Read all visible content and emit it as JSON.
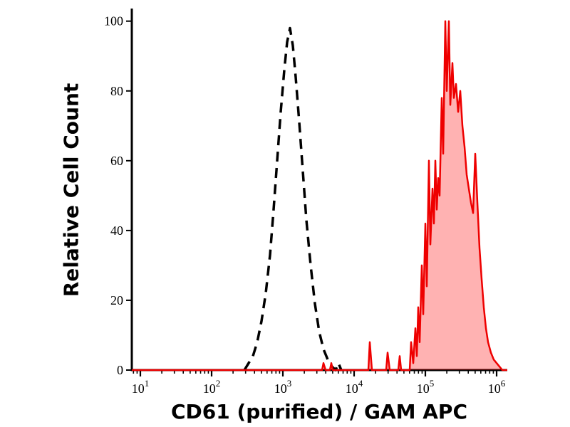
{
  "figure": {
    "background": "#ffffff",
    "axis_color": "#000000"
  },
  "chart_data": {
    "type": "area",
    "subtype": "flow-cytometry-histogram-overlay",
    "title": "",
    "xlabel": "CD61 (purified) / GAM APC",
    "ylabel": "Relative Cell Count",
    "x_scale": "log10",
    "x_range_log10": [
      0.88,
      6.15
    ],
    "ylim": [
      0,
      103
    ],
    "x_tick_base": "10",
    "x_tick_exponents": [
      1,
      2,
      3,
      4,
      5,
      6
    ],
    "y_ticks": [
      0,
      20,
      40,
      60,
      80,
      100
    ],
    "grid": false,
    "legend": "none",
    "series": [
      {
        "name": "negative control (dashed outline)",
        "line_style": "dashed",
        "color": "#000000",
        "fill": "none",
        "stroke_width": 3.5,
        "dash": "14 9",
        "points_log10x_y": [
          [
            2.46,
            0
          ],
          [
            2.52,
            2
          ],
          [
            2.58,
            4
          ],
          [
            2.64,
            8
          ],
          [
            2.7,
            14
          ],
          [
            2.76,
            22
          ],
          [
            2.82,
            33
          ],
          [
            2.87,
            46
          ],
          [
            2.92,
            60
          ],
          [
            2.97,
            74
          ],
          [
            3.02,
            86
          ],
          [
            3.06,
            94
          ],
          [
            3.1,
            98
          ],
          [
            3.14,
            93
          ],
          [
            3.18,
            84
          ],
          [
            3.23,
            71
          ],
          [
            3.28,
            57
          ],
          [
            3.33,
            43
          ],
          [
            3.39,
            30
          ],
          [
            3.45,
            19
          ],
          [
            3.51,
            11
          ],
          [
            3.57,
            6
          ],
          [
            3.63,
            3
          ],
          [
            3.69,
            1
          ],
          [
            3.74,
            0
          ],
          [
            3.78,
            2
          ],
          [
            3.82,
            0
          ]
        ]
      },
      {
        "name": "CD61 stained (red filled)",
        "line_style": "solid",
        "color": "#ee0000",
        "fill": "rgba(255,0,0,0.30)",
        "stroke_width": 2.5,
        "dash": "",
        "points_log10x_y": [
          [
            0.88,
            0
          ],
          [
            3.55,
            0
          ],
          [
            3.57,
            2
          ],
          [
            3.6,
            0
          ],
          [
            3.66,
            0
          ],
          [
            3.68,
            2
          ],
          [
            3.7,
            0
          ],
          [
            4.2,
            0
          ],
          [
            4.22,
            8
          ],
          [
            4.25,
            0
          ],
          [
            4.45,
            0
          ],
          [
            4.47,
            5
          ],
          [
            4.5,
            0
          ],
          [
            4.62,
            0
          ],
          [
            4.64,
            4
          ],
          [
            4.66,
            0
          ],
          [
            4.78,
            0
          ],
          [
            4.8,
            8
          ],
          [
            4.83,
            2
          ],
          [
            4.86,
            12
          ],
          [
            4.88,
            4
          ],
          [
            4.9,
            18
          ],
          [
            4.92,
            8
          ],
          [
            4.95,
            30
          ],
          [
            4.97,
            16
          ],
          [
            5.0,
            42
          ],
          [
            5.02,
            24
          ],
          [
            5.05,
            60
          ],
          [
            5.07,
            36
          ],
          [
            5.1,
            52
          ],
          [
            5.12,
            42
          ],
          [
            5.14,
            60
          ],
          [
            5.16,
            46
          ],
          [
            5.18,
            55
          ],
          [
            5.2,
            50
          ],
          [
            5.23,
            78
          ],
          [
            5.25,
            62
          ],
          [
            5.28,
            100
          ],
          [
            5.3,
            80
          ],
          [
            5.33,
            100
          ],
          [
            5.35,
            76
          ],
          [
            5.38,
            88
          ],
          [
            5.4,
            78
          ],
          [
            5.43,
            82
          ],
          [
            5.46,
            74
          ],
          [
            5.49,
            80
          ],
          [
            5.52,
            70
          ],
          [
            5.55,
            64
          ],
          [
            5.58,
            56
          ],
          [
            5.61,
            52
          ],
          [
            5.64,
            48
          ],
          [
            5.67,
            45
          ],
          [
            5.7,
            62
          ],
          [
            5.73,
            48
          ],
          [
            5.76,
            35
          ],
          [
            5.79,
            26
          ],
          [
            5.82,
            18
          ],
          [
            5.85,
            12
          ],
          [
            5.88,
            8
          ],
          [
            5.92,
            5
          ],
          [
            5.96,
            3
          ],
          [
            6.0,
            2
          ],
          [
            6.04,
            1
          ],
          [
            6.08,
            0
          ],
          [
            6.15,
            0
          ]
        ]
      }
    ]
  }
}
